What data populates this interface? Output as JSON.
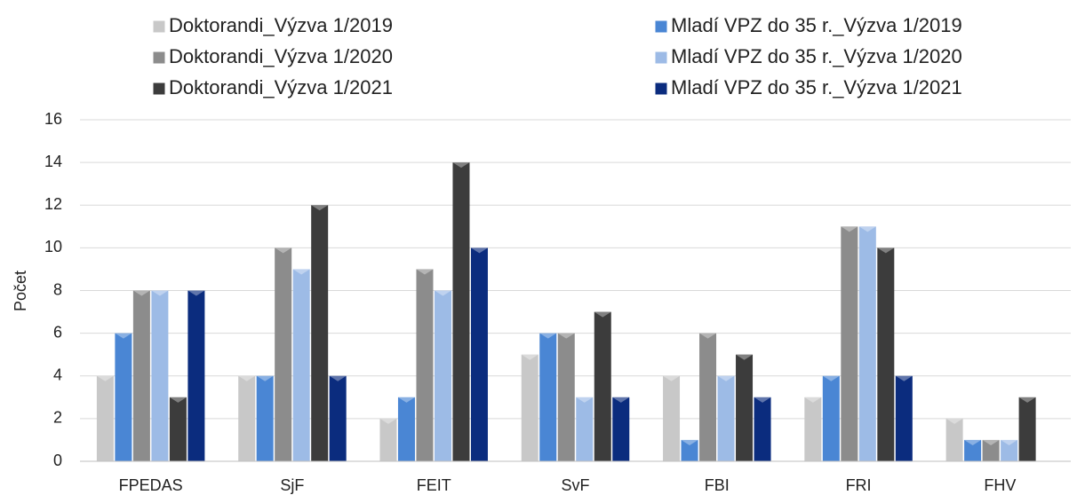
{
  "chart_data": {
    "type": "bar",
    "y_label": "Počet",
    "categories": [
      "FPEDAS",
      "SjF",
      "FEIT",
      "SvF",
      "FBI",
      "FRI",
      "FHV"
    ],
    "series": [
      {
        "name": "Doktorandi_Výzva 1/2019",
        "color": "#c8c8c8",
        "values": [
          4,
          4,
          2,
          5,
          4,
          3,
          2
        ]
      },
      {
        "name": "Mladí VPZ do 35 r._Výzva 1/2019",
        "color": "#4a86d4",
        "values": [
          6,
          4,
          3,
          6,
          1,
          4,
          1
        ]
      },
      {
        "name": "Doktorandi_Výzva 1/2020",
        "color": "#8c8c8c",
        "values": [
          8,
          10,
          9,
          6,
          6,
          11,
          1
        ]
      },
      {
        "name": "Mladí VPZ do 35 r._Výzva 1/2020",
        "color": "#9dbbe6",
        "values": [
          8,
          9,
          8,
          3,
          4,
          11,
          1
        ]
      },
      {
        "name": "Doktorandi_Výzva 1/2021",
        "color": "#3c3c3c",
        "values": [
          3,
          12,
          14,
          7,
          5,
          10,
          3
        ]
      },
      {
        "name": "Mladí VPZ do 35 r._Výzva 1/2021",
        "color": "#0b2c7e",
        "values": [
          8,
          4,
          10,
          3,
          3,
          4,
          0
        ]
      }
    ],
    "ylim": [
      0,
      16
    ],
    "yticks": [
      0,
      2,
      4,
      6,
      8,
      10,
      12,
      14,
      16
    ],
    "grid": true,
    "legend": "top"
  }
}
